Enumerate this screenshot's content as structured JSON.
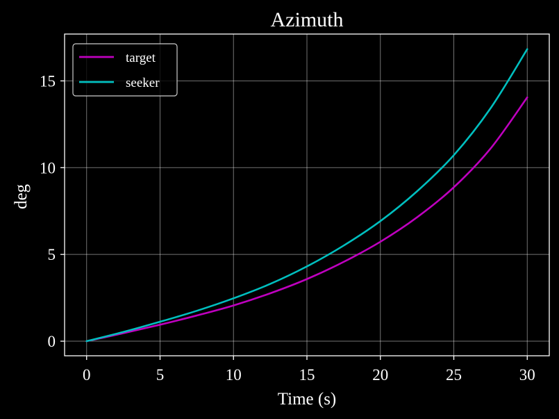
{
  "chart_data": {
    "type": "line",
    "title": "Azimuth",
    "xlabel": "Time (s)",
    "ylabel": "deg",
    "xlim": [
      -1.5,
      31.5
    ],
    "ylim": [
      -0.84,
      17.7
    ],
    "xticks": [
      0,
      5,
      10,
      15,
      20,
      25,
      30
    ],
    "yticks": [
      0,
      5,
      10,
      15
    ],
    "grid": true,
    "legend": "upper left",
    "background": "#000000",
    "series": [
      {
        "name": "target",
        "color": "#bf00bf",
        "x": [
          0,
          2.5,
          5,
          7.5,
          10,
          12.5,
          15,
          17.5,
          20,
          22.5,
          25,
          27.5,
          30
        ],
        "y": [
          0,
          0.46,
          0.95,
          1.48,
          2.06,
          2.76,
          3.58,
          4.57,
          5.73,
          7.14,
          8.87,
          11.1,
          14.05
        ]
      },
      {
        "name": "seeker",
        "color": "#00bfbf",
        "x": [
          0,
          2.5,
          5,
          7.5,
          10,
          12.5,
          15,
          17.5,
          20,
          22.5,
          25,
          27.5,
          30
        ],
        "y": [
          0,
          0.53,
          1.12,
          1.75,
          2.47,
          3.3,
          4.31,
          5.51,
          6.92,
          8.64,
          10.72,
          13.42,
          16.83
        ]
      }
    ]
  }
}
